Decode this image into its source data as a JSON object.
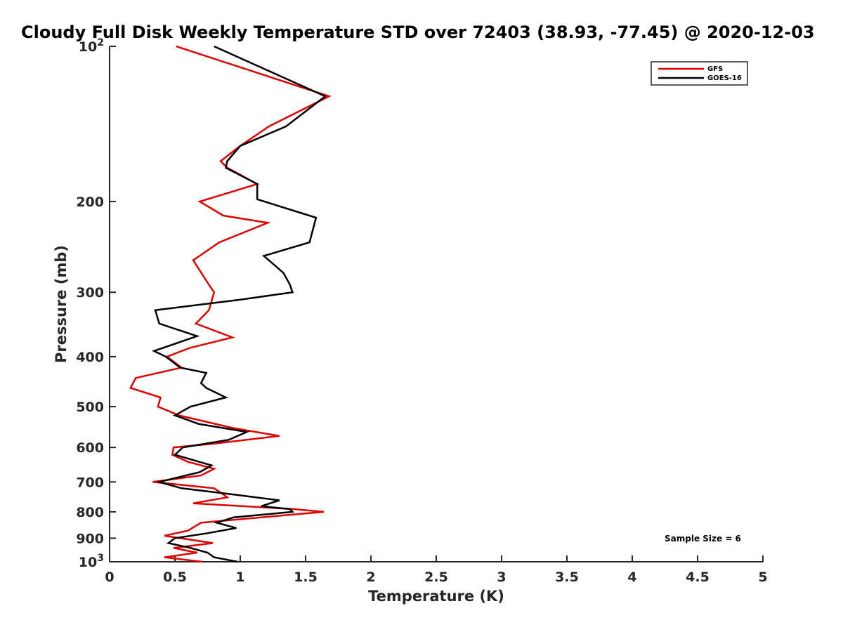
{
  "chart_data": {
    "type": "line",
    "title": "Cloudy Full Disk Weekly Temperature STD over 72403 (38.93, -77.45) @ 2020-12-03",
    "xlabel": "Temperature (K)",
    "ylabel": "Pressure (mb)",
    "xlim": [
      0,
      5
    ],
    "ylim": [
      100,
      1000
    ],
    "y_scale": "log",
    "y_reversed": true,
    "x_ticks": [
      "0",
      "0.5",
      "1",
      "1.5",
      "2",
      "2.5",
      "3",
      "3.5",
      "4",
      "4.5",
      "5"
    ],
    "y_ticks": [
      {
        "value": 100,
        "base": "10",
        "exp": "2"
      },
      {
        "value": 200,
        "label": "200"
      },
      {
        "value": 300,
        "label": "300"
      },
      {
        "value": 400,
        "label": "400"
      },
      {
        "value": 500,
        "label": "500"
      },
      {
        "value": 600,
        "label": "600"
      },
      {
        "value": 700,
        "label": "700"
      },
      {
        "value": 800,
        "label": "800"
      },
      {
        "value": 900,
        "label": "900"
      },
      {
        "value": 1000,
        "base": "10",
        "exp": "3"
      }
    ],
    "grid": false,
    "legend_position": "top-right",
    "annotation": "Sample Size = 6",
    "series": [
      {
        "name": "GFS",
        "color": "#e00000",
        "points": [
          [
            0.51,
            100
          ],
          [
            1.68,
            125
          ],
          [
            1.22,
            143
          ],
          [
            1.0,
            156
          ],
          [
            0.85,
            167
          ],
          [
            0.9,
            172
          ],
          [
            1.13,
            185
          ],
          [
            0.69,
            200
          ],
          [
            0.87,
            213
          ],
          [
            1.21,
            220
          ],
          [
            0.84,
            240
          ],
          [
            0.64,
            260
          ],
          [
            0.76,
            290
          ],
          [
            0.8,
            300
          ],
          [
            0.76,
            325
          ],
          [
            0.66,
            345
          ],
          [
            0.94,
            367
          ],
          [
            0.61,
            385
          ],
          [
            0.44,
            400
          ],
          [
            0.55,
            420
          ],
          [
            0.2,
            440
          ],
          [
            0.16,
            460
          ],
          [
            0.39,
            480
          ],
          [
            0.37,
            500
          ],
          [
            0.53,
            520
          ],
          [
            0.94,
            550
          ],
          [
            1.3,
            570
          ],
          [
            0.8,
            590
          ],
          [
            0.49,
            600
          ],
          [
            0.48,
            620
          ],
          [
            0.6,
            640
          ],
          [
            0.8,
            660
          ],
          [
            0.7,
            680
          ],
          [
            0.33,
            700
          ],
          [
            0.8,
            720
          ],
          [
            0.87,
            740
          ],
          [
            0.9,
            750
          ],
          [
            0.64,
            770
          ],
          [
            1.4,
            790
          ],
          [
            1.64,
            800
          ],
          [
            1.28,
            815
          ],
          [
            0.7,
            840
          ],
          [
            0.6,
            870
          ],
          [
            0.42,
            890
          ],
          [
            0.79,
            920
          ],
          [
            0.49,
            940
          ],
          [
            0.67,
            960
          ],
          [
            0.42,
            980
          ],
          [
            0.71,
            1000
          ]
        ]
      },
      {
        "name": "GOES-16",
        "color": "#000000",
        "points": [
          [
            0.8,
            100
          ],
          [
            1.65,
            125
          ],
          [
            1.35,
            143
          ],
          [
            1.0,
            156
          ],
          [
            0.9,
            167
          ],
          [
            0.89,
            172
          ],
          [
            1.13,
            185
          ],
          [
            1.13,
            198
          ],
          [
            1.58,
            215
          ],
          [
            1.53,
            240
          ],
          [
            1.18,
            255
          ],
          [
            1.33,
            275
          ],
          [
            1.38,
            290
          ],
          [
            1.4,
            300
          ],
          [
            1.0,
            310
          ],
          [
            0.35,
            325
          ],
          [
            0.38,
            345
          ],
          [
            0.67,
            365
          ],
          [
            0.34,
            390
          ],
          [
            0.43,
            400
          ],
          [
            0.54,
            420
          ],
          [
            0.74,
            430
          ],
          [
            0.7,
            450
          ],
          [
            0.74,
            460
          ],
          [
            0.89,
            480
          ],
          [
            0.62,
            500
          ],
          [
            0.5,
            520
          ],
          [
            0.68,
            540
          ],
          [
            1.05,
            560
          ],
          [
            0.91,
            580
          ],
          [
            0.56,
            600
          ],
          [
            0.5,
            620
          ],
          [
            0.78,
            650
          ],
          [
            0.69,
            670
          ],
          [
            0.38,
            700
          ],
          [
            0.55,
            720
          ],
          [
            0.94,
            740
          ],
          [
            1.3,
            760
          ],
          [
            1.16,
            780
          ],
          [
            1.38,
            790
          ],
          [
            1.4,
            800
          ],
          [
            0.95,
            820
          ],
          [
            0.82,
            840
          ],
          [
            0.97,
            860
          ],
          [
            0.75,
            880
          ],
          [
            0.5,
            900
          ],
          [
            0.45,
            920
          ],
          [
            0.62,
            940
          ],
          [
            0.75,
            960
          ],
          [
            0.8,
            980
          ],
          [
            0.98,
            1000
          ]
        ]
      }
    ]
  }
}
